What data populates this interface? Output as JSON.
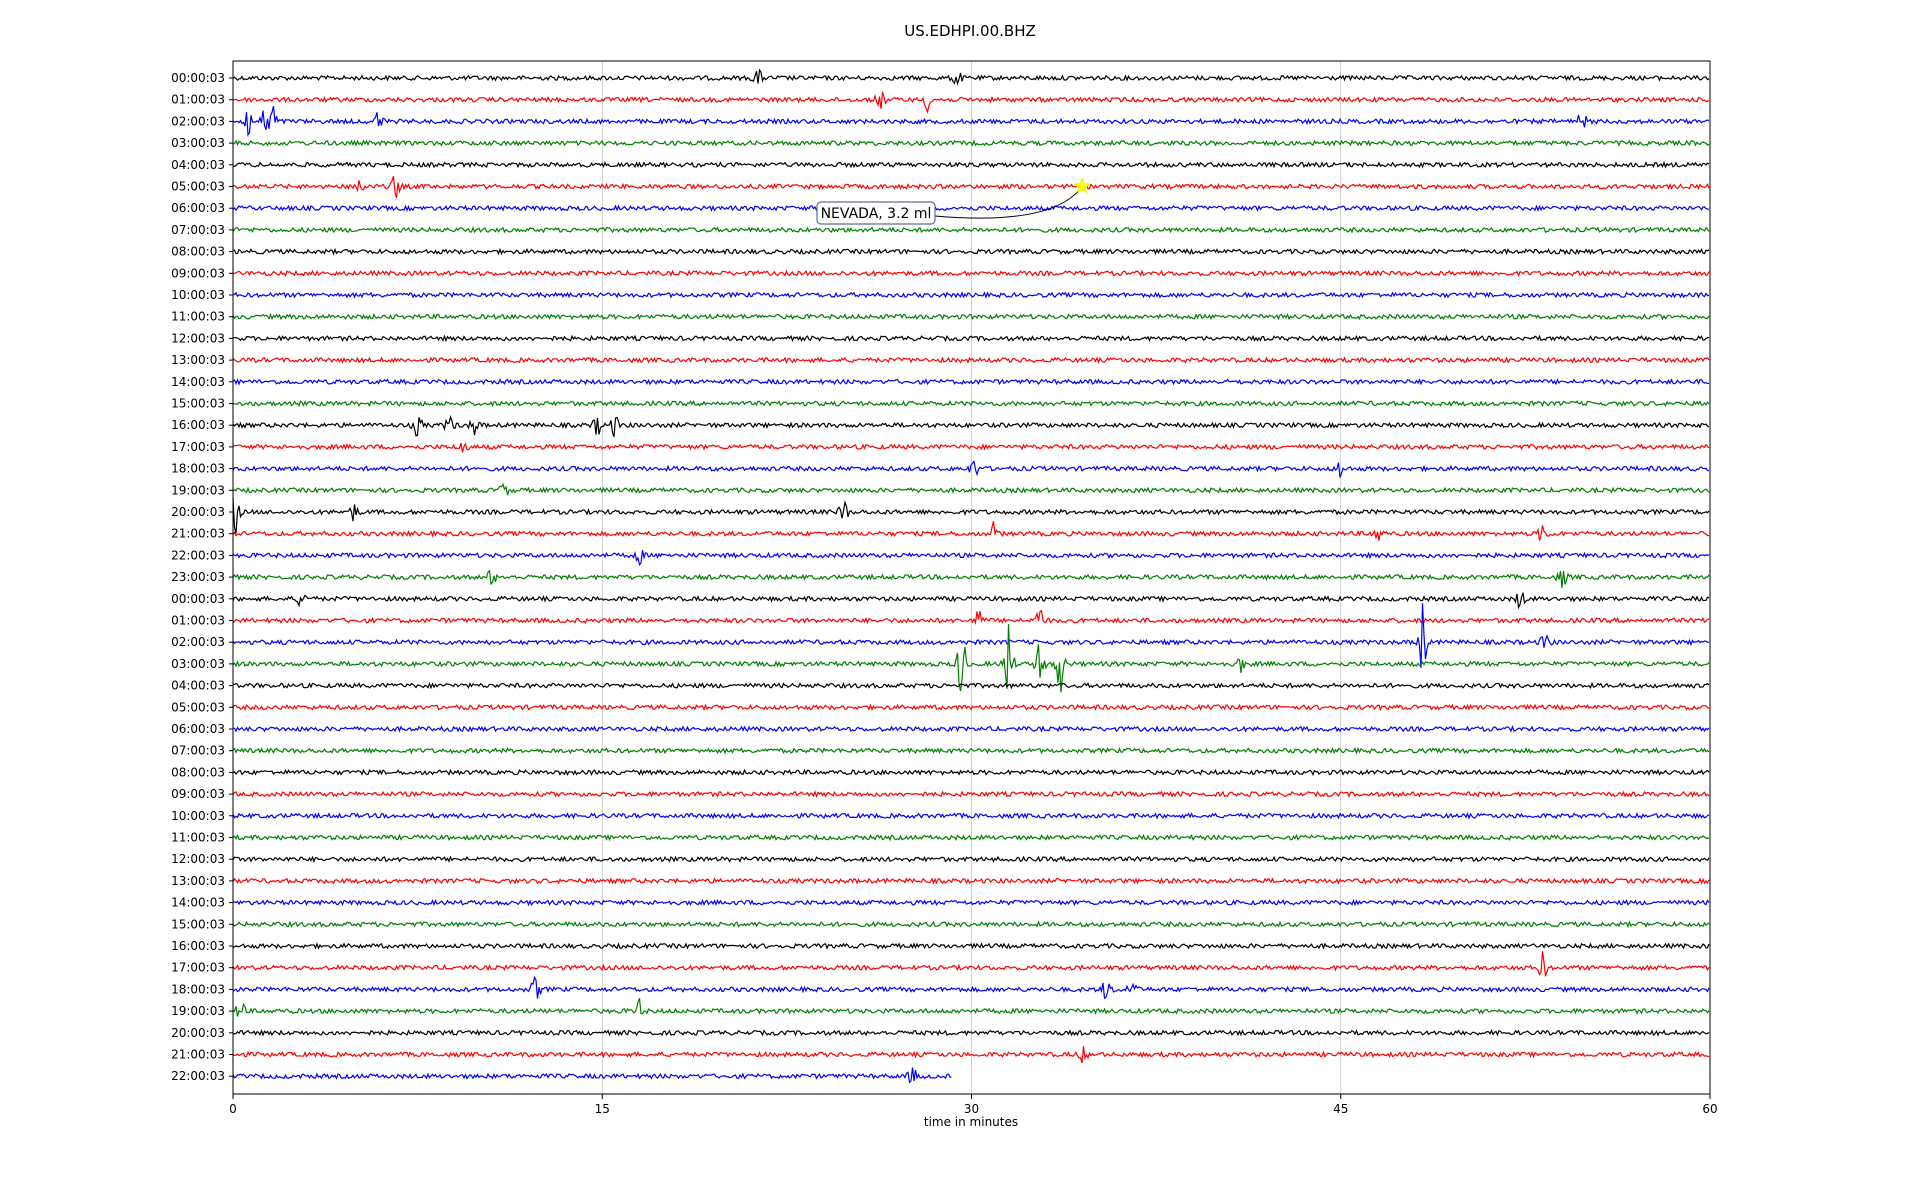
{
  "chart_data": {
    "type": "line",
    "title": "US.EDHPI.00.BHZ",
    "xlabel": "time in minutes",
    "ylabel": "",
    "xlim": [
      0,
      60
    ],
    "x_ticks": [
      "0",
      "15",
      "30",
      "45",
      "60"
    ],
    "x_tick_values": [
      0,
      15,
      30,
      45,
      60
    ],
    "grid": "vertical lines at x ticks",
    "trace_colors_cycle": [
      "#000000",
      "#ff0000",
      "#0000ff",
      "#008000"
    ],
    "row_labels": [
      "00:00:03",
      "01:00:03",
      "02:00:03",
      "03:00:03",
      "04:00:03",
      "05:00:03",
      "06:00:03",
      "07:00:03",
      "08:00:03",
      "09:00:03",
      "10:00:03",
      "11:00:03",
      "12:00:03",
      "13:00:03",
      "14:00:03",
      "15:00:03",
      "16:00:03",
      "17:00:03",
      "18:00:03",
      "19:00:03",
      "20:00:03",
      "21:00:03",
      "22:00:03",
      "23:00:03",
      "00:00:03",
      "01:00:03",
      "02:00:03",
      "03:00:03",
      "04:00:03",
      "05:00:03",
      "06:00:03",
      "07:00:03",
      "08:00:03",
      "09:00:03",
      "10:00:03",
      "11:00:03",
      "12:00:03",
      "13:00:03",
      "14:00:03",
      "15:00:03",
      "16:00:03",
      "17:00:03",
      "18:00:03",
      "19:00:03",
      "20:00:03",
      "21:00:03",
      "22:00:03"
    ],
    "last_row_end_minute": 29.2,
    "events": [
      {
        "row": 0,
        "minute": 21.3,
        "amp": 0.55
      },
      {
        "row": 0,
        "minute": 29.4,
        "amp": 0.5
      },
      {
        "row": 1,
        "minute": 26.3,
        "amp": 0.55
      },
      {
        "row": 1,
        "minute": 28.2,
        "amp": 0.5
      },
      {
        "row": 2,
        "minute": 0.6,
        "amp": 0.9
      },
      {
        "row": 2,
        "minute": 1.3,
        "amp": 0.7
      },
      {
        "row": 2,
        "minute": 1.6,
        "amp": 1.0
      },
      {
        "row": 2,
        "minute": 5.9,
        "amp": 0.6
      },
      {
        "row": 2,
        "minute": 54.8,
        "amp": 0.55
      },
      {
        "row": 5,
        "minute": 5.1,
        "amp": 0.6
      },
      {
        "row": 5,
        "minute": 6.6,
        "amp": 0.7
      },
      {
        "row": 16,
        "minute": 7.5,
        "amp": 0.6
      },
      {
        "row": 16,
        "minute": 8.8,
        "amp": 0.5
      },
      {
        "row": 16,
        "minute": 9.8,
        "amp": 0.45
      },
      {
        "row": 16,
        "minute": 14.8,
        "amp": 0.5
      },
      {
        "row": 16,
        "minute": 15.5,
        "amp": 0.55
      },
      {
        "row": 17,
        "minute": 9.3,
        "amp": 0.5
      },
      {
        "row": 18,
        "minute": 30.1,
        "amp": 0.5
      },
      {
        "row": 18,
        "minute": 45.0,
        "amp": 0.55
      },
      {
        "row": 19,
        "minute": 11.0,
        "amp": 0.4
      },
      {
        "row": 20,
        "minute": 0.1,
        "amp": 1.1
      },
      {
        "row": 20,
        "minute": 4.9,
        "amp": 0.45
      },
      {
        "row": 20,
        "minute": 24.8,
        "amp": 0.7
      },
      {
        "row": 21,
        "minute": 30.9,
        "amp": 0.5
      },
      {
        "row": 21,
        "minute": 46.5,
        "amp": 0.5
      },
      {
        "row": 21,
        "minute": 53.2,
        "amp": 0.55
      },
      {
        "row": 22,
        "minute": 16.5,
        "amp": 0.45
      },
      {
        "row": 23,
        "minute": 10.5,
        "amp": 0.45
      },
      {
        "row": 23,
        "minute": 54.0,
        "amp": 0.55
      },
      {
        "row": 24,
        "minute": 2.8,
        "amp": 0.5
      },
      {
        "row": 24,
        "minute": 52.3,
        "amp": 0.55
      },
      {
        "row": 25,
        "minute": 30.3,
        "amp": 0.6
      },
      {
        "row": 25,
        "minute": 32.8,
        "amp": 0.9
      },
      {
        "row": 26,
        "minute": 48.3,
        "amp": 2.1
      },
      {
        "row": 26,
        "minute": 53.3,
        "amp": 0.5
      },
      {
        "row": 27,
        "minute": 29.6,
        "amp": 2.1
      },
      {
        "row": 27,
        "minute": 31.5,
        "amp": 2.4
      },
      {
        "row": 27,
        "minute": 32.8,
        "amp": 1.6
      },
      {
        "row": 27,
        "minute": 33.6,
        "amp": 1.6
      },
      {
        "row": 27,
        "minute": 40.9,
        "amp": 0.5
      },
      {
        "row": 41,
        "minute": 53.2,
        "amp": 0.75
      },
      {
        "row": 42,
        "minute": 12.3,
        "amp": 0.7
      },
      {
        "row": 42,
        "minute": 35.5,
        "amp": 0.7
      },
      {
        "row": 42,
        "minute": 36.5,
        "amp": 0.5
      },
      {
        "row": 43,
        "minute": 0.3,
        "amp": 0.6
      },
      {
        "row": 43,
        "minute": 16.5,
        "amp": 0.55
      },
      {
        "row": 45,
        "minute": 34.5,
        "amp": 0.4
      },
      {
        "row": 46,
        "minute": 27.6,
        "amp": 0.45
      }
    ],
    "annotation": {
      "text": "NEVADA, 3.2 ml",
      "marker": "star",
      "marker_color": "#ffff00",
      "row": 5,
      "minute": 34.5
    }
  }
}
